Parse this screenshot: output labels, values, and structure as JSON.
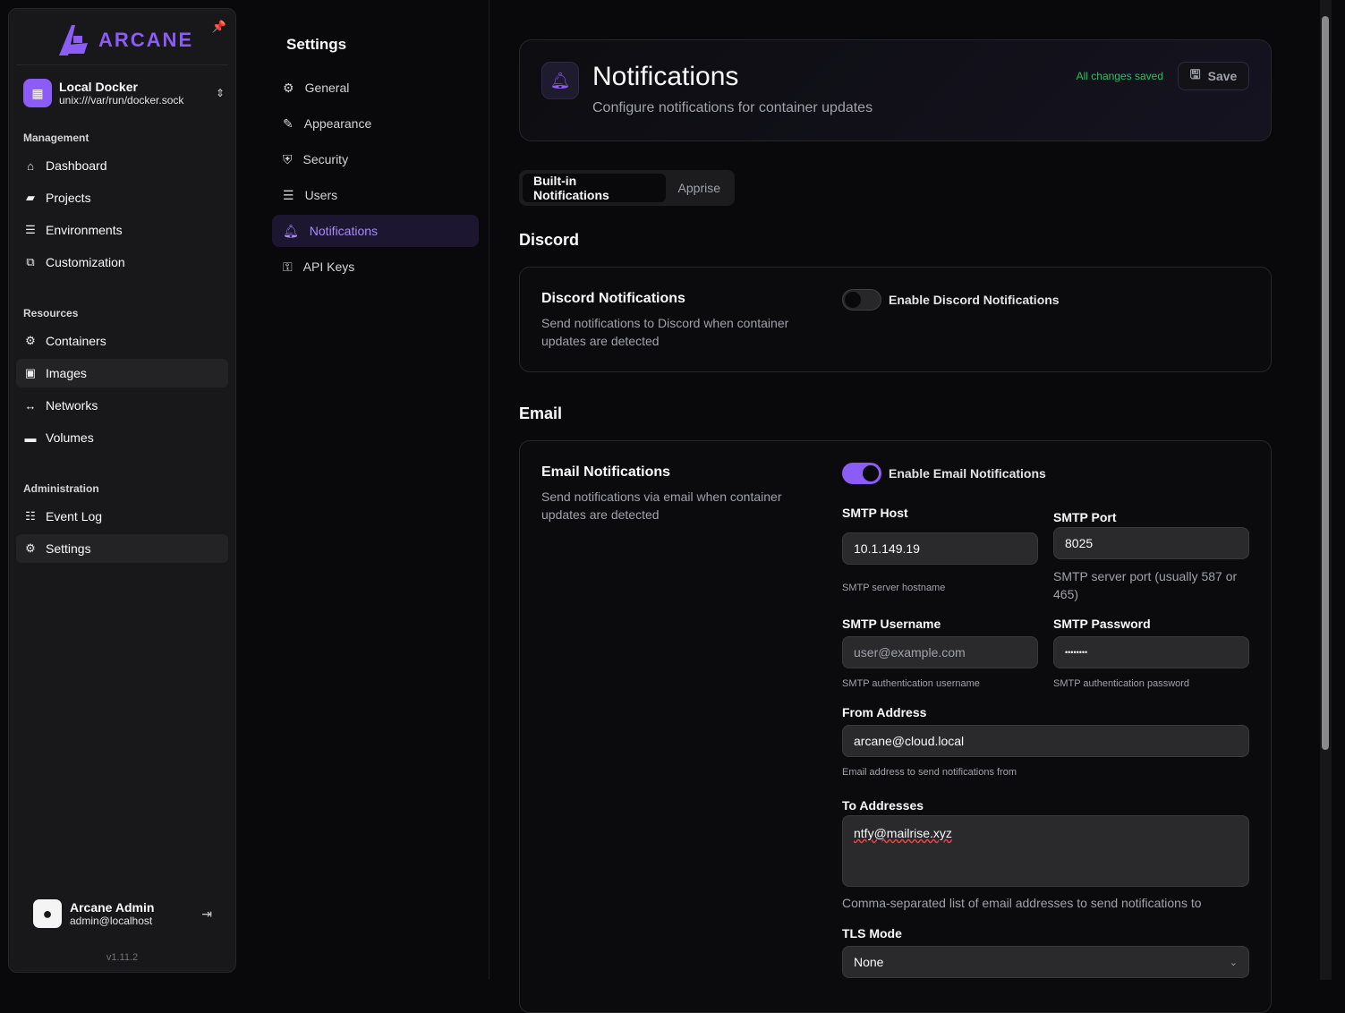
{
  "sidebar": {
    "logo": "ARCANE",
    "environment": {
      "name": "Local Docker",
      "socket": "unix:///var/run/docker.sock"
    },
    "groups": {
      "management": "Management",
      "resources": "Resources",
      "administration": "Administration"
    },
    "items": {
      "dashboard": "Dashboard",
      "projects": "Projects",
      "environments": "Environments",
      "customization": "Customization",
      "containers": "Containers",
      "images": "Images",
      "networks": "Networks",
      "volumes": "Volumes",
      "event_log": "Event Log",
      "settings": "Settings"
    },
    "user": {
      "name": "Arcane Admin",
      "email": "admin@localhost"
    },
    "version": "v1.11.2"
  },
  "settings_nav": {
    "title": "Settings",
    "items": [
      "General",
      "Appearance",
      "Security",
      "Users",
      "Notifications",
      "API Keys"
    ],
    "active": "Notifications"
  },
  "header": {
    "title": "Notifications",
    "subtitle": "Configure notifications for container updates",
    "status": "All changes saved",
    "save_label": "Save"
  },
  "tabs": [
    "Built-in Notifications",
    "Apprise"
  ],
  "discord": {
    "section": "Discord",
    "title": "Discord Notifications",
    "description": "Send notifications to Discord when container updates are detected",
    "toggle_label": "Enable Discord Notifications",
    "enabled": false
  },
  "email": {
    "section": "Email",
    "title": "Email Notifications",
    "description": "Send notifications via email when container updates are detected",
    "toggle_label": "Enable Email Notifications",
    "enabled": true,
    "smtp_host": {
      "label": "SMTP Host",
      "value": "10.1.149.19",
      "hint": "SMTP server hostname"
    },
    "smtp_port": {
      "label": "SMTP Port",
      "value": "8025",
      "hint": "SMTP server port (usually 587 or 465)"
    },
    "smtp_username": {
      "label": "SMTP Username",
      "placeholder": "user@example.com",
      "hint": "SMTP authentication username"
    },
    "smtp_password": {
      "label": "SMTP Password",
      "value": "••••••••",
      "hint": "SMTP authentication password"
    },
    "from_address": {
      "label": "From Address",
      "value": "arcane@cloud.local",
      "hint": "Email address to send notifications from"
    },
    "to_addresses": {
      "label": "To Addresses",
      "value": "ntfy@mailrise.xyz",
      "hint": "Comma-separated list of email addresses to send notifications to"
    },
    "tls_mode": {
      "label": "TLS Mode",
      "value": "None"
    }
  },
  "colors": {
    "accent": "#8b5cf6",
    "success": "#22c55e"
  }
}
